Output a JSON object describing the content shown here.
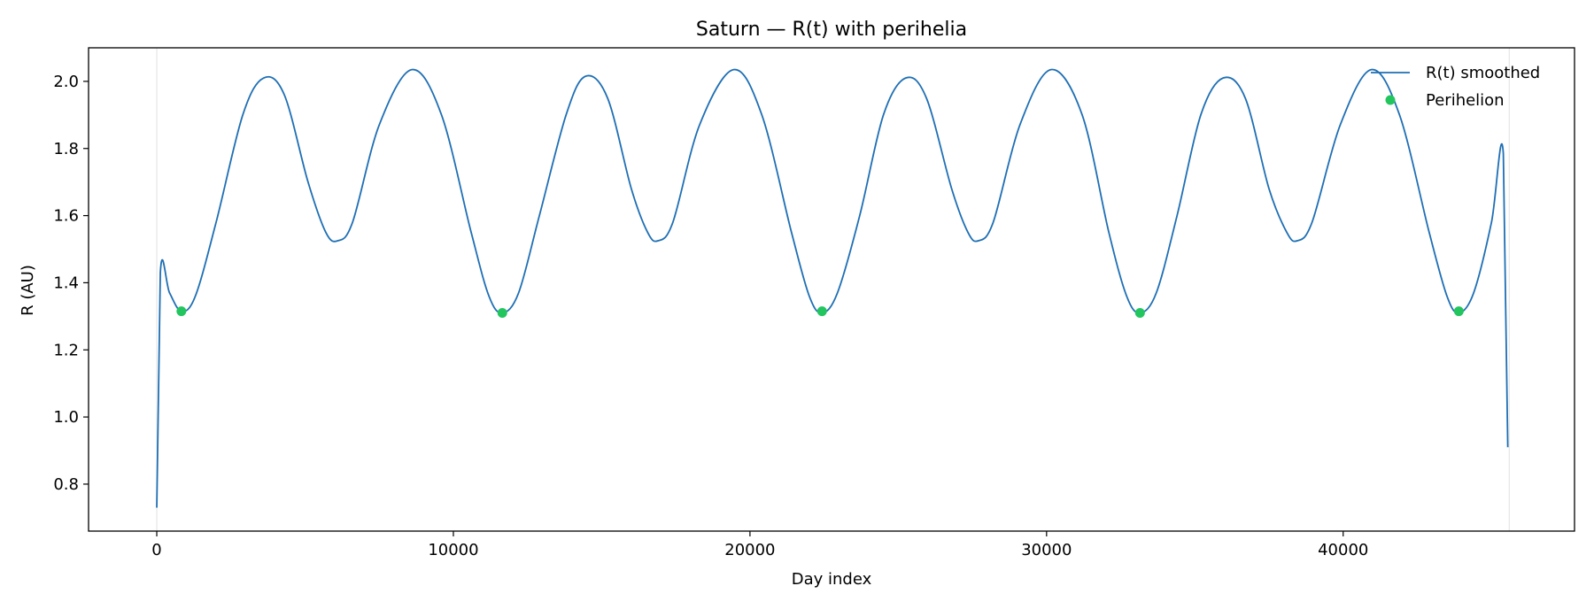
{
  "chart_data": {
    "type": "line",
    "title": "Saturn — R(t) with perihelia",
    "xlabel": "Day index",
    "ylabel": "R (AU)",
    "xlim": [
      -2300,
      47800
    ],
    "ylim": [
      0.66,
      2.1
    ],
    "x_ticks": [
      0,
      10000,
      20000,
      30000,
      40000
    ],
    "y_ticks": [
      0.8,
      1.0,
      1.2,
      1.4,
      1.6,
      1.8,
      2.0
    ],
    "x_tick_labels": [
      "0",
      "10000",
      "20000",
      "30000",
      "40000"
    ],
    "y_tick_labels": [
      "0.8",
      "1.0",
      "1.2",
      "1.4",
      "1.6",
      "1.8",
      "2.0"
    ],
    "grid": false,
    "vertical_guides": [
      0,
      45600
    ],
    "legend": {
      "position": "top-right",
      "entries": [
        {
          "label": "R(t) smoothed",
          "kind": "line",
          "color": "#1f6fb4"
        },
        {
          "label": "Perihelion",
          "kind": "marker",
          "color": "#22c55e"
        }
      ]
    },
    "series": [
      {
        "name": "R(t) smoothed",
        "color": "#1f6fb4",
        "points": [
          [
            0,
            0.73
          ],
          [
            120,
            1.43
          ],
          [
            430,
            1.37
          ],
          [
            830,
            1.315
          ],
          [
            1300,
            1.36
          ],
          [
            2000,
            1.58
          ],
          [
            2900,
            1.9
          ],
          [
            3600,
            2.01
          ],
          [
            4300,
            1.96
          ],
          [
            5100,
            1.7
          ],
          [
            5700,
            1.55
          ],
          [
            6100,
            1.525
          ],
          [
            6600,
            1.58
          ],
          [
            7500,
            1.87
          ],
          [
            8600,
            2.035
          ],
          [
            9600,
            1.9
          ],
          [
            10600,
            1.55
          ],
          [
            11200,
            1.36
          ],
          [
            11650,
            1.31
          ],
          [
            12200,
            1.37
          ],
          [
            12900,
            1.6
          ],
          [
            13800,
            1.9
          ],
          [
            14450,
            2.015
          ],
          [
            15200,
            1.95
          ],
          [
            16000,
            1.68
          ],
          [
            16550,
            1.55
          ],
          [
            16900,
            1.525
          ],
          [
            17400,
            1.58
          ],
          [
            18300,
            1.87
          ],
          [
            19450,
            2.035
          ],
          [
            20400,
            1.9
          ],
          [
            21400,
            1.55
          ],
          [
            22000,
            1.36
          ],
          [
            22430,
            1.31
          ],
          [
            22950,
            1.37
          ],
          [
            23700,
            1.6
          ],
          [
            24500,
            1.9
          ],
          [
            25250,
            2.01
          ],
          [
            25950,
            1.95
          ],
          [
            26800,
            1.68
          ],
          [
            27350,
            1.55
          ],
          [
            27700,
            1.525
          ],
          [
            28200,
            1.58
          ],
          [
            29100,
            1.87
          ],
          [
            30150,
            2.035
          ],
          [
            31200,
            1.9
          ],
          [
            32100,
            1.55
          ],
          [
            32700,
            1.36
          ],
          [
            33150,
            1.31
          ],
          [
            33700,
            1.37
          ],
          [
            34400,
            1.6
          ],
          [
            35200,
            1.9
          ],
          [
            35950,
            2.01
          ],
          [
            36700,
            1.95
          ],
          [
            37500,
            1.68
          ],
          [
            38100,
            1.55
          ],
          [
            38450,
            1.525
          ],
          [
            38950,
            1.58
          ],
          [
            39900,
            1.87
          ],
          [
            40950,
            2.035
          ],
          [
            41900,
            1.9
          ],
          [
            42900,
            1.55
          ],
          [
            43500,
            1.36
          ],
          [
            43900,
            1.31
          ],
          [
            44400,
            1.37
          ],
          [
            45000,
            1.58
          ],
          [
            45400,
            1.785
          ],
          [
            45550,
            0.91
          ]
        ]
      },
      {
        "name": "Perihelion",
        "color": "#22c55e",
        "kind": "scatter",
        "points": [
          [
            830,
            1.315
          ],
          [
            11650,
            1.31
          ],
          [
            22430,
            1.315
          ],
          [
            33150,
            1.31
          ],
          [
            43900,
            1.315
          ]
        ]
      }
    ]
  }
}
